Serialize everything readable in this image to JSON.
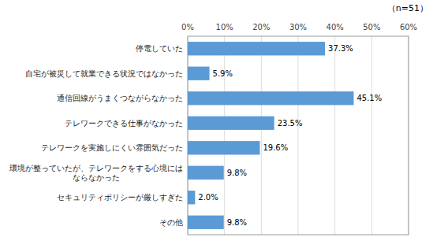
{
  "chart_data": {
    "type": "bar",
    "orientation": "horizontal",
    "categories": [
      "停電していた",
      "自宅が被災して就業できる状況ではなかった",
      "通信回線がうまくつながらなかった",
      "テレワークできる仕事がなかった",
      "テレワークを実施しにくい雰囲気だった",
      "環境が整っていたが、テレワークをする心境には\nならなかった",
      "セキュリティポリシーが厳しすぎた",
      "その他"
    ],
    "values": [
      37.3,
      5.9,
      45.1,
      23.5,
      19.6,
      9.8,
      2.0,
      9.8
    ],
    "value_labels": [
      "37.3%",
      "5.9%",
      "45.1%",
      "23.5%",
      "19.6%",
      "9.8%",
      "2.0%",
      "9.8%"
    ],
    "data_labels": true,
    "color": "#5B9BD5",
    "xlim": [
      0,
      60
    ],
    "xticks": [
      {
        "value": 0,
        "label": "0%"
      },
      {
        "value": 10,
        "label": "10%"
      },
      {
        "value": 20,
        "label": "20%"
      },
      {
        "value": 30,
        "label": "30%"
      },
      {
        "value": 40,
        "label": "40%"
      },
      {
        "value": 50,
        "label": "50%"
      },
      {
        "value": 60,
        "label": "60%"
      }
    ],
    "grid": true,
    "annotations": [
      "（n=51）"
    ]
  }
}
